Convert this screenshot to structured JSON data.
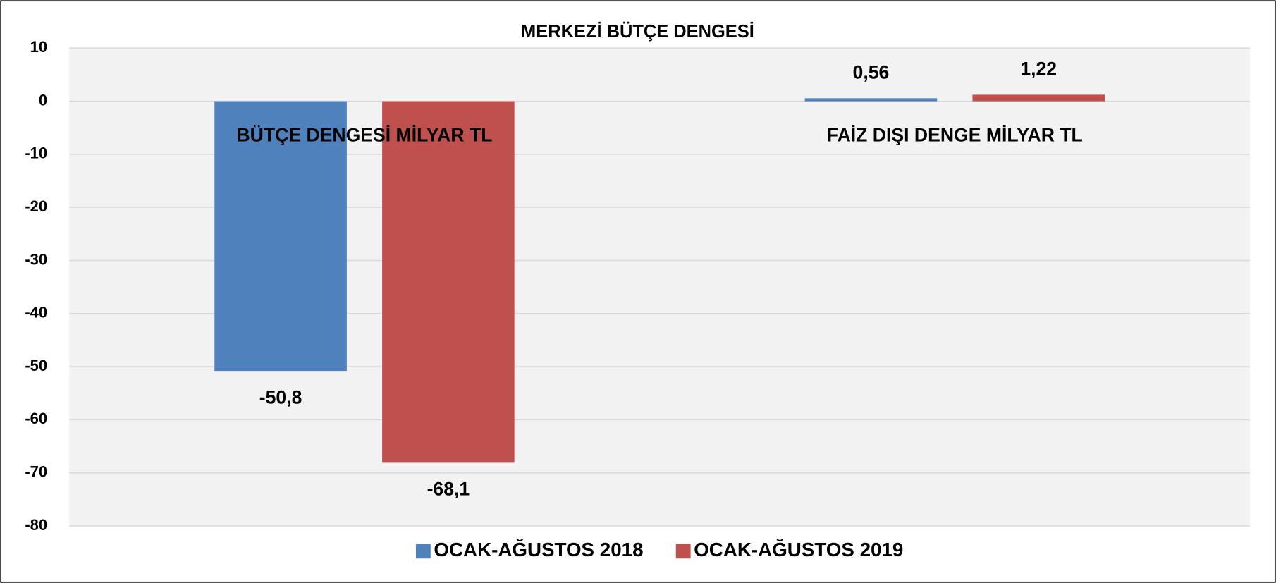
{
  "chart_data": {
    "type": "bar",
    "title": "MERKEZİ BÜTÇE DENGESİ",
    "categories": [
      "BÜTÇE DENGESİ MİLYAR TL",
      "FAİZ DIŞI DENGE MİLYAR TL"
    ],
    "series": [
      {
        "name": "OCAK-AĞUSTOS 2018",
        "color": "#4f81bd",
        "values": [
          -50.8,
          0.56
        ],
        "value_labels": [
          "-50,8",
          "0,56"
        ]
      },
      {
        "name": "OCAK-AĞUSTOS 2019",
        "color": "#c0504d",
        "values": [
          -68.1,
          1.22
        ],
        "value_labels": [
          "-68,1",
          "1,22"
        ]
      }
    ],
    "ylim": [
      -80,
      10
    ],
    "yticks": [
      -80,
      -70,
      -60,
      -50,
      -40,
      -30,
      -20,
      -10,
      0,
      10
    ],
    "grid": true,
    "legend": "bottom"
  }
}
